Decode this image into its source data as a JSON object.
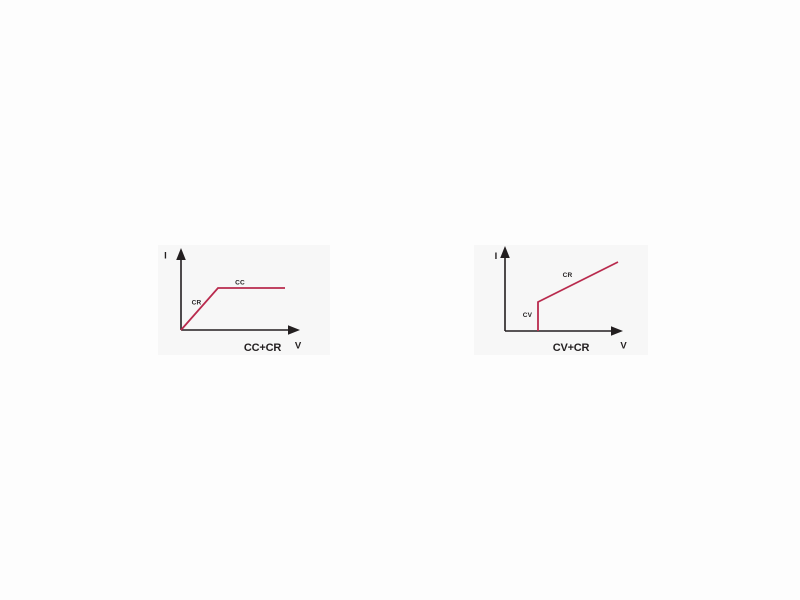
{
  "page": {
    "background": "#fdfdfd"
  },
  "style": {
    "axis_color": "#231f20",
    "text_color": "#231f20",
    "curve_color": "#b92b4e",
    "panel_color": "#f7f7f7"
  },
  "chart_data": [
    {
      "type": "line",
      "title": "CC+CR",
      "xlabel": "V",
      "ylabel": "I",
      "axis_numeric": false,
      "series": [
        {
          "name": "CR",
          "x": [
            0.0,
            0.31
          ],
          "y": [
            0.0,
            0.57
          ]
        },
        {
          "name": "CC",
          "x": [
            0.31,
            0.87
          ],
          "y": [
            0.57,
            0.57
          ]
        }
      ]
    },
    {
      "type": "line",
      "title": "CV+CR",
      "xlabel": "V",
      "ylabel": "I",
      "axis_numeric": false,
      "series": [
        {
          "name": "CV",
          "x": [
            0.28,
            0.28
          ],
          "y": [
            0.0,
            0.35
          ]
        },
        {
          "name": "CR",
          "x": [
            0.28,
            0.96
          ],
          "y": [
            0.35,
            0.83
          ]
        }
      ]
    }
  ],
  "figures": [
    {
      "caption": "CC+CR",
      "y_axis_label": "I",
      "x_axis_label": "V",
      "curve_points": [
        [
          26,
          90
        ],
        [
          63,
          48
        ],
        [
          130,
          48
        ]
      ],
      "segments": [
        {
          "label": "CR"
        },
        {
          "label": "CC"
        }
      ]
    },
    {
      "caption": "CV+CR",
      "y_axis_label": "I",
      "x_axis_label": "V",
      "curve_points": [
        [
          68,
          91
        ],
        [
          68,
          62
        ],
        [
          148,
          22
        ]
      ],
      "segments": [
        {
          "label": "CV"
        },
        {
          "label": "CR"
        }
      ]
    }
  ]
}
